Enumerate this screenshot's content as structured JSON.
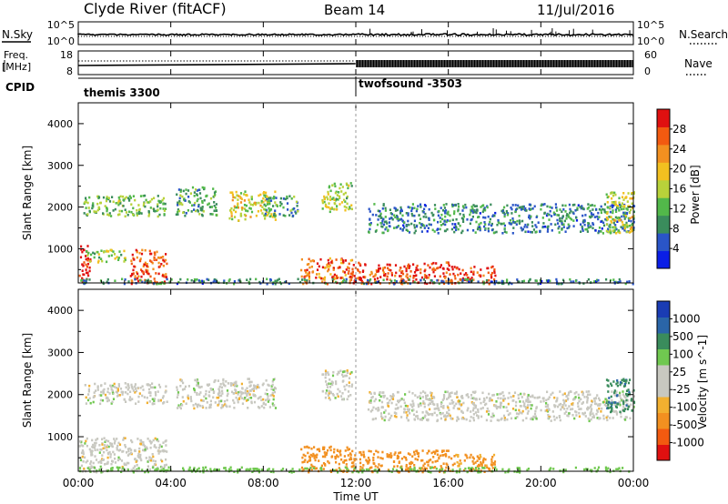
{
  "header": {
    "station": "Clyde River (fitACF)",
    "beam": "Beam 14",
    "date": "11/Jul/2016"
  },
  "strip": {
    "nsky_label": "N.Sky",
    "nsky_ticks": [
      "10^5",
      "10^0"
    ],
    "nsearch_label": "N.Search",
    "nsearch_ticks": [
      "10^5",
      "10^0"
    ],
    "freq_label_1": "Freq.",
    "freq_label_2": "[MHz]",
    "freq_ticks": [
      "18",
      "8"
    ],
    "nave_label": "Nave",
    "nave_ticks": [
      "60",
      "0"
    ],
    "cpid_label": "CPID",
    "cpid_segments": [
      {
        "label": "themis 3300",
        "start_hour": 0
      },
      {
        "label": "twofsound -3503",
        "start_hour": 12
      }
    ]
  },
  "x_axis": {
    "label": "Time UT",
    "ticks": [
      "00:00",
      "04:00",
      "08:00",
      "12:00",
      "16:00",
      "20:00",
      "00:00"
    ],
    "range_hours": [
      0,
      24
    ]
  },
  "colors": {
    "power": [
      "#0a1ee6",
      "#2a55c8",
      "#3a8c5c",
      "#52b84a",
      "#b8d23a",
      "#f2c020",
      "#f29020",
      "#f25a10",
      "#e01010"
    ],
    "velocity": [
      "#e01010",
      "#f25a10",
      "#f29020",
      "#f2b030",
      "#c8c8c0",
      "#c8c8c0",
      "#70c850",
      "#3a8c5c",
      "#2a65a8",
      "#1a3cb4"
    ]
  },
  "chart_data": [
    {
      "type": "heatmap",
      "ylabel": "Slant Range [km]",
      "y_ticks": [
        "1000",
        "2000",
        "3000",
        "4000"
      ],
      "ylim": [
        180,
        4500
      ],
      "xlim": [
        0,
        24
      ],
      "colorbar_label": "Power [dB]",
      "colorbar_ticks": [
        "4",
        "8",
        "12",
        "16",
        "20",
        "24",
        "28"
      ],
      "colorbar_range": [
        0,
        30
      ],
      "regions": [
        {
          "t": [
            0.0,
            0.5
          ],
          "r": [
            180,
            1100
          ],
          "level": 30
        },
        {
          "t": [
            0.3,
            2.0
          ],
          "r": [
            700,
            1000
          ],
          "level": 14
        },
        {
          "t": [
            2.2,
            3.8
          ],
          "r": [
            180,
            1000
          ],
          "level": 26
        },
        {
          "t": [
            0.2,
            3.8
          ],
          "r": [
            1800,
            2300
          ],
          "level": 12
        },
        {
          "t": [
            4.2,
            6.0
          ],
          "r": [
            1800,
            2500
          ],
          "level": 10
        },
        {
          "t": [
            6.5,
            8.5
          ],
          "r": [
            1700,
            2400
          ],
          "level": 16
        },
        {
          "t": [
            8.0,
            9.5
          ],
          "r": [
            1800,
            2300
          ],
          "level": 9
        },
        {
          "t": [
            10.5,
            11.8
          ],
          "r": [
            1900,
            2600
          ],
          "level": 14
        },
        {
          "t": [
            9.6,
            11.8
          ],
          "r": [
            180,
            800
          ],
          "level": 24
        },
        {
          "t": [
            11.8,
            16.0
          ],
          "r": [
            180,
            700
          ],
          "level": 26
        },
        {
          "t": [
            16.0,
            18.0
          ],
          "r": [
            180,
            600
          ],
          "level": 27
        },
        {
          "t": [
            12.5,
            24.0
          ],
          "r": [
            1400,
            2100
          ],
          "level": 8
        },
        {
          "t": [
            22.8,
            24.0
          ],
          "r": [
            1400,
            2400
          ],
          "level": 16
        },
        {
          "t": [
            0.0,
            24.0
          ],
          "r": [
            180,
            300
          ],
          "level": 8
        }
      ]
    },
    {
      "type": "heatmap",
      "ylabel": "Slant Range [km]",
      "y_ticks": [
        "1000",
        "2000",
        "3000",
        "4000"
      ],
      "ylim": [
        180,
        4500
      ],
      "xlim": [
        0,
        24
      ],
      "colorbar_label": "Velocity [m s^-1]",
      "colorbar_ticks": [
        "-1000",
        "-500",
        "-100",
        "-25",
        "25",
        "100",
        "500",
        "1000"
      ],
      "colorbar_range": [
        -1000,
        1000
      ],
      "regions": [
        {
          "t": [
            0.0,
            3.8
          ],
          "r": [
            180,
            1000
          ],
          "value": 0
        },
        {
          "t": [
            0.2,
            3.8
          ],
          "r": [
            1800,
            2300
          ],
          "value": 0
        },
        {
          "t": [
            4.2,
            8.5
          ],
          "r": [
            1700,
            2400
          ],
          "value": 0
        },
        {
          "t": [
            10.5,
            11.8
          ],
          "r": [
            1900,
            2600
          ],
          "value": 0
        },
        {
          "t": [
            9.6,
            11.8
          ],
          "r": [
            180,
            800
          ],
          "value": -300
        },
        {
          "t": [
            11.8,
            16.0
          ],
          "r": [
            180,
            700
          ],
          "value": -250
        },
        {
          "t": [
            16.0,
            18.0
          ],
          "r": [
            180,
            600
          ],
          "value": -150
        },
        {
          "t": [
            12.5,
            24.0
          ],
          "r": [
            1400,
            2100
          ],
          "value": 0
        },
        {
          "t": [
            22.8,
            24.0
          ],
          "r": [
            1600,
            2400
          ],
          "value": 400
        },
        {
          "t": [
            0.0,
            24.0
          ],
          "r": [
            180,
            300
          ],
          "value": 60
        }
      ]
    }
  ]
}
